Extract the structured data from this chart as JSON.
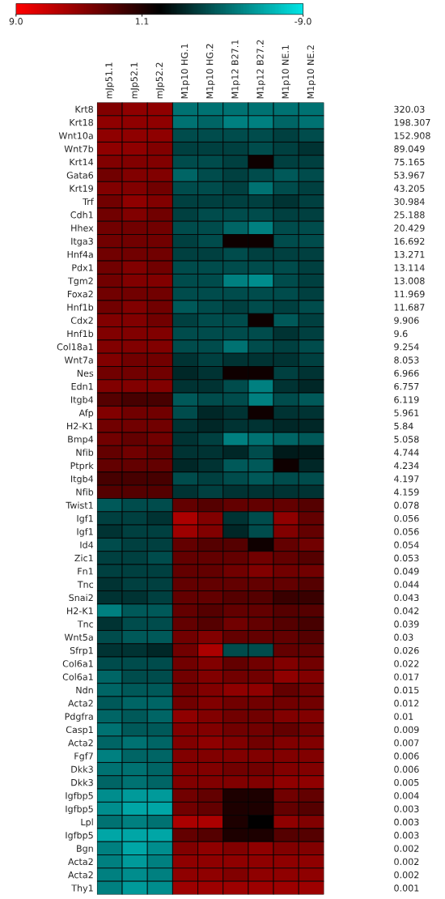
{
  "chart_data": {
    "type": "heatmap",
    "categories": [
      "mJp51.1",
      "mJp52.1",
      "mJp52.2",
      "M1p10 HG.1",
      "M1p10 HG.2",
      "M1p12 B27.1",
      "M1p12 B27.2",
      "M1p10 NE.1",
      "M1p10 NE.2"
    ],
    "y_categories": [
      "Krt8",
      "Krt18",
      "Wnt10a",
      "Wnt7b",
      "Krt14",
      "Gata6",
      "Krt19",
      "Trf",
      "Cdh1",
      "Hhex",
      "Itga3",
      "Hnf4a",
      "Pdx1",
      "Tgm2",
      "Foxa2",
      "Hnf1b",
      "Cdx2",
      "Hnf1b",
      "Col18a1",
      "Wnt7a",
      "Nes",
      "Edn1",
      "Itgb4",
      "Afp",
      "H2-K1",
      "Bmp4",
      "Nfib",
      "Ptprk",
      "Itgb4",
      "Nfib",
      "Twist1",
      "Igf1",
      "Igf1",
      "Id4",
      "Zic1",
      "Fn1",
      "Tnc",
      "Snai2",
      "H2-K1",
      "Tnc",
      "Wnt5a",
      "Sfrp1",
      "Col6a1",
      "Col6a1",
      "Ndn",
      "Acta2",
      "Pdgfra",
      "Casp1",
      "Acta2",
      "Fgf7",
      "Dkk3",
      "Dkk3",
      "Igfbp5",
      "Igfbp5",
      "Lpl",
      "Igfbp5",
      "Bgn",
      "Acta2",
      "Acta2",
      "Thy1"
    ],
    "y2_categories": [
      "320.03",
      "198.307",
      "152.908",
      "89.049",
      "75.165",
      "53.967",
      "43.205",
      "30.984",
      "25.188",
      "20.429",
      "16.692",
      "13.271",
      "13.114",
      "13.008",
      "11.969",
      "11.687",
      "9.906",
      "9.6",
      "9.254",
      "8.053",
      "6.966",
      "6.757",
      "6.119",
      "5.961",
      "5.84",
      "5.058",
      "4.744",
      "4.234",
      "4.197",
      "4.159",
      "0.078",
      "0.056",
      "0.056",
      "0.054",
      "0.053",
      "0.049",
      "0.044",
      "0.043",
      "0.042",
      "0.039",
      "0.03",
      "0.026",
      "0.022",
      "0.017",
      "0.015",
      "0.012",
      "0.01",
      "0.009",
      "0.007",
      "0.006",
      "0.006",
      "0.005",
      "0.004",
      "0.003",
      "0.003",
      "0.003",
      "0.002",
      "0.002",
      "0.002",
      "0.001"
    ],
    "cells": [
      [
        4.5,
        5,
        5,
        -4.5,
        -4.5,
        -4.5,
        -4.5,
        -4.5,
        -4.5
      ],
      [
        5,
        5,
        5,
        -4.5,
        -4,
        -5,
        -5,
        -4,
        -4.5
      ],
      [
        5,
        5,
        5,
        -3,
        -3,
        -3,
        -3,
        -2.5,
        -3
      ],
      [
        5,
        5,
        4.5,
        -2.5,
        -2.5,
        -2.5,
        -3,
        -2.5,
        -2
      ],
      [
        4.5,
        4.5,
        4.5,
        -3,
        -3,
        -2.5,
        0.5,
        -2.5,
        -2.5
      ],
      [
        4,
        4.5,
        4.5,
        -4,
        -3,
        -2.5,
        -3,
        -3.5,
        -3
      ],
      [
        4.5,
        4.5,
        4,
        -3,
        -3,
        -2.5,
        -4.5,
        -3,
        -2.5
      ],
      [
        4,
        5,
        4.5,
        -2.5,
        -2.5,
        -2.5,
        -2.5,
        -2,
        -2.5
      ],
      [
        4,
        4.5,
        4,
        -2.5,
        -3,
        -3,
        -3,
        -2.5,
        -2.5
      ],
      [
        4,
        4,
        4,
        -3,
        -3,
        -4,
        -5,
        -3,
        -3
      ],
      [
        4,
        4,
        4,
        -2.5,
        -3,
        0.5,
        0.5,
        -3,
        -3
      ],
      [
        4,
        4,
        4,
        -2.5,
        -2.5,
        -3,
        -2.5,
        -2.5,
        -2.5
      ],
      [
        4,
        4.5,
        4,
        -3,
        -3,
        -3,
        -3,
        -3,
        -2.5
      ],
      [
        4,
        4.5,
        4.5,
        -3,
        -3,
        -5,
        -5.5,
        -3,
        -2.5
      ],
      [
        4,
        4,
        4,
        -3,
        -3,
        -3,
        -3,
        -3,
        -2.5
      ],
      [
        4,
        4.5,
        4,
        -3.5,
        -3,
        -2.5,
        -3,
        -2.5,
        -3
      ],
      [
        4.5,
        4.5,
        4,
        -2.5,
        -3,
        -3,
        0.5,
        -3.5,
        -2.5
      ],
      [
        4.5,
        4.5,
        4.5,
        -3,
        -3,
        -3,
        -3,
        -2,
        -2.5
      ],
      [
        4.5,
        4.5,
        4.5,
        -3,
        -3,
        -4.5,
        -3,
        -2.5,
        -3
      ],
      [
        4.5,
        4,
        4,
        -2,
        -2.5,
        -2,
        -2,
        -2,
        -2.5
      ],
      [
        4,
        4,
        4,
        -1.5,
        -2,
        0.5,
        0.5,
        -2.5,
        -2
      ],
      [
        4.5,
        4.5,
        4.5,
        -2,
        -2,
        -3,
        -5,
        -2,
        -1.5
      ],
      [
        3,
        2.5,
        2.5,
        -3.5,
        -3,
        -3,
        -5,
        -3,
        -3.5
      ],
      [
        4.5,
        4,
        4,
        -3,
        -1.5,
        -2,
        0.5,
        -2,
        -2
      ],
      [
        4,
        4,
        4,
        -2,
        -1.5,
        -2,
        -2,
        -1.5,
        -1.5
      ],
      [
        4,
        3.5,
        4,
        -2,
        -2.5,
        -5,
        -4.5,
        -4,
        -3.5
      ],
      [
        3.5,
        4,
        3.5,
        -2,
        -2,
        -1.5,
        -3,
        -1,
        -1
      ],
      [
        3.5,
        3.5,
        3.5,
        -1.5,
        -2,
        -3.5,
        -3.5,
        0.5,
        -1.5
      ],
      [
        2.5,
        2.5,
        2.5,
        -3,
        -2.5,
        -3,
        -3.5,
        -3,
        -3
      ],
      [
        3,
        3,
        3,
        -2,
        -2.5,
        -2,
        -2,
        -2,
        -2
      ],
      [
        -3.5,
        -3,
        -3,
        3.5,
        3,
        3.5,
        3.5,
        3.5,
        3
      ],
      [
        -2.5,
        -2.5,
        -2,
        6,
        4.5,
        -2,
        -3,
        5,
        3.5
      ],
      [
        -2,
        -2.5,
        -2.5,
        5.5,
        4.5,
        -1.5,
        -3,
        4.5,
        3.5
      ],
      [
        -3,
        -2.5,
        -2.5,
        3.5,
        3,
        3,
        0.5,
        3.5,
        4
      ],
      [
        -2.5,
        -2.5,
        -3,
        3.5,
        3.5,
        3.5,
        4,
        3.5,
        3
      ],
      [
        -2.5,
        -2.5,
        -2.5,
        3.5,
        3.5,
        4,
        4.5,
        4,
        4
      ],
      [
        -2,
        -2.5,
        -2.5,
        3.5,
        3.5,
        3.5,
        3.5,
        3.5,
        3
      ],
      [
        -2,
        -2,
        -2.5,
        3.5,
        3.5,
        3,
        3,
        2,
        2
      ],
      [
        -5,
        -3.5,
        -3.5,
        3.5,
        3,
        3.5,
        3.5,
        3,
        3
      ],
      [
        -2,
        -3,
        -3,
        3.5,
        3,
        4,
        3.5,
        3,
        2.5
      ],
      [
        -3,
        -3.5,
        -3.5,
        4,
        4.5,
        3.5,
        3.5,
        3.5,
        3
      ],
      [
        -2,
        -2,
        -1.5,
        4,
        6,
        -3,
        -3,
        3.5,
        3.5
      ],
      [
        -3,
        -3,
        -3,
        4,
        4.5,
        3.5,
        4,
        4.5,
        4
      ],
      [
        -4,
        -3,
        -3,
        4,
        4.5,
        4,
        4,
        5,
        4.5
      ],
      [
        -4,
        -3.5,
        -3.5,
        4,
        4.5,
        5,
        5,
        3.5,
        4
      ],
      [
        -3.5,
        -4,
        -4,
        4,
        4.5,
        4,
        4,
        4,
        4
      ],
      [
        -4,
        -3.5,
        -4,
        5,
        4.5,
        4,
        4,
        4.5,
        4.5
      ],
      [
        -4.5,
        -3.5,
        -3.5,
        4.5,
        4.5,
        4,
        4,
        3.5,
        4
      ],
      [
        -4,
        -4.5,
        -4,
        4.5,
        5,
        4.5,
        4,
        4.5,
        4.5
      ],
      [
        -5,
        -4,
        -4,
        4.5,
        4.5,
        4.5,
        4.5,
        4.5,
        4.5
      ],
      [
        -4.5,
        -4.5,
        -4,
        4.5,
        4.5,
        4,
        4,
        4.5,
        4.5
      ],
      [
        -4,
        -4.5,
        -4,
        4.5,
        4.5,
        4.5,
        4.5,
        5,
        5
      ],
      [
        -5.5,
        -6,
        -6,
        4,
        3.5,
        1,
        1,
        4,
        3.5
      ],
      [
        -5.5,
        -6.5,
        -6.5,
        4,
        3.5,
        1,
        1,
        3.5,
        3
      ],
      [
        -4.5,
        -5,
        -4.5,
        6,
        6,
        1,
        0,
        5,
        4.5
      ],
      [
        -6.5,
        -6.5,
        -6.5,
        3.5,
        3,
        1,
        1,
        3,
        3
      ],
      [
        -5,
        -6.5,
        -5.5,
        4.5,
        5,
        4.5,
        5,
        4.5,
        4.5
      ],
      [
        -5,
        -6,
        -5,
        5,
        5,
        5,
        5,
        5,
        5
      ],
      [
        -5,
        -5.5,
        -5,
        5,
        5,
        4.5,
        5,
        5,
        5
      ],
      [
        -5,
        -6,
        -5.5,
        5.5,
        5.5,
        5.5,
        5.5,
        5.5,
        5.5
      ]
    ],
    "clim": [
      9.0,
      -9.0
    ],
    "cticks": [
      {
        "value": 9.0,
        "label": "9.0"
      },
      {
        "value": 1.1,
        "label": "1.1"
      },
      {
        "value": -9.0,
        "label": "-9.0"
      }
    ]
  }
}
